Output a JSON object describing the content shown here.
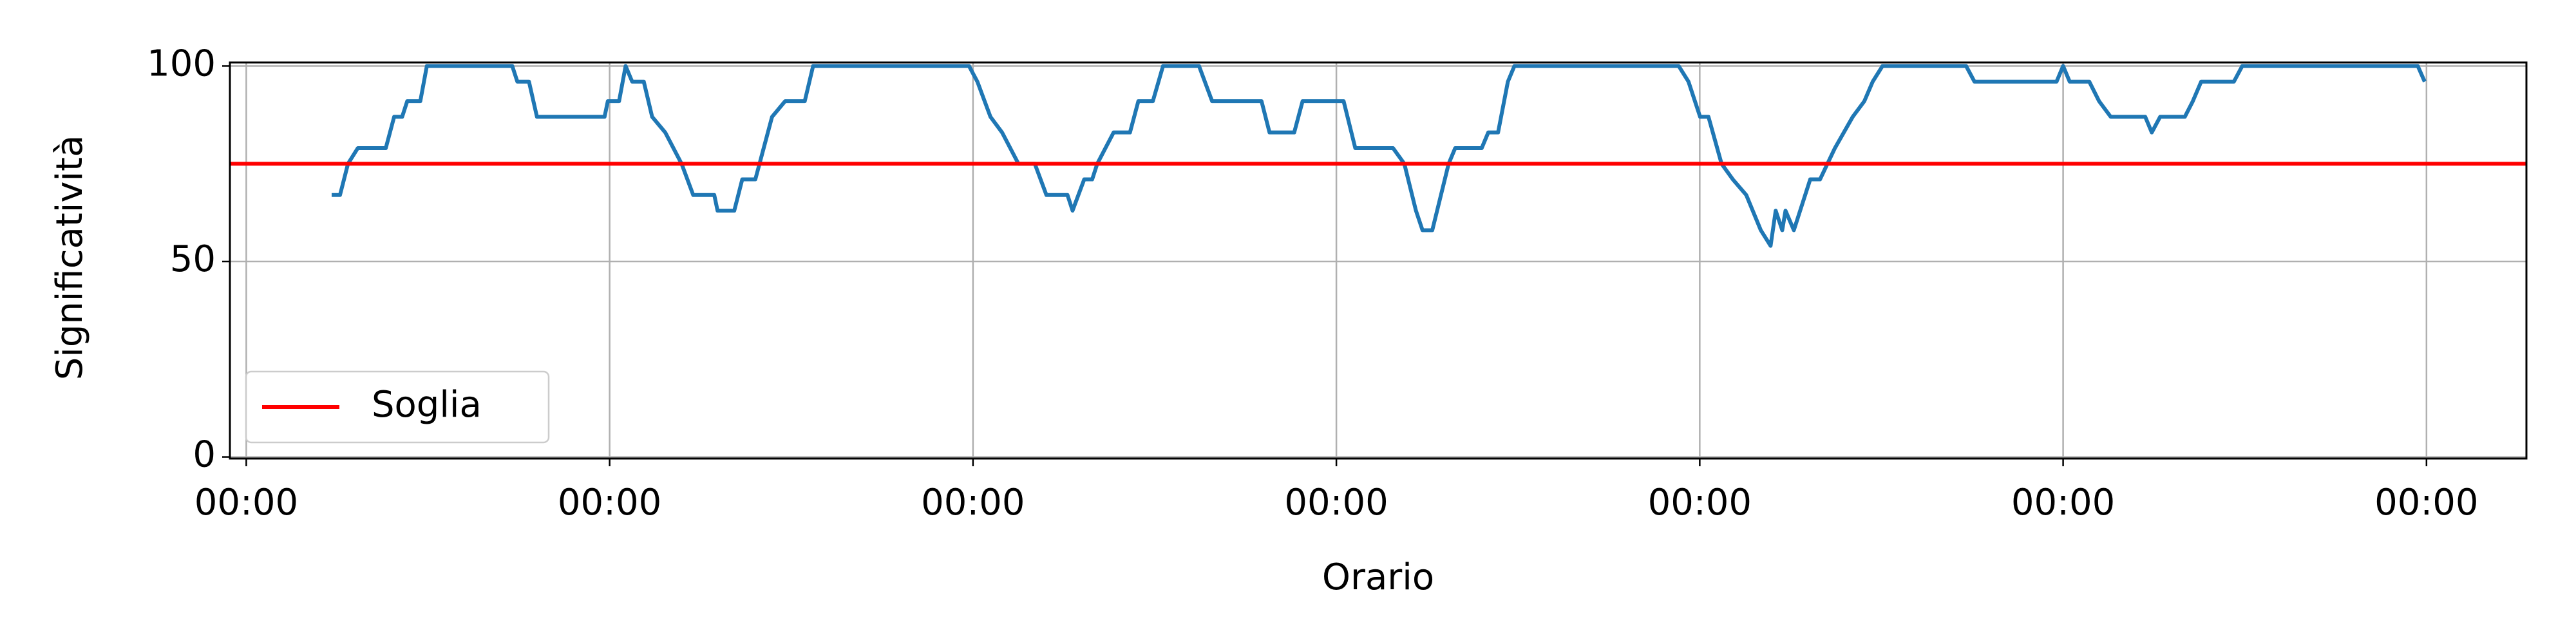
{
  "chart_data": {
    "type": "line",
    "x_label": "Orario",
    "y_label": "Significatività",
    "x": [
      0.235,
      0.258,
      0.28,
      0.307,
      0.384,
      0.407,
      0.429,
      0.443,
      0.479,
      0.497,
      0.732,
      0.746,
      0.778,
      0.8,
      0.986,
      0.995,
      1.026,
      1.044,
      1.062,
      1.094,
      1.117,
      1.153,
      1.198,
      1.23,
      1.288,
      1.297,
      1.343,
      1.365,
      1.401,
      1.424,
      1.447,
      1.483,
      1.537,
      1.56,
      1.989,
      2.012,
      2.048,
      2.08,
      2.125,
      2.17,
      2.202,
      2.26,
      2.274,
      2.306,
      2.328,
      2.342,
      2.387,
      2.432,
      2.455,
      2.495,
      2.523,
      2.622,
      2.658,
      2.794,
      2.816,
      2.884,
      2.907,
      3.02,
      3.052,
      3.156,
      3.187,
      3.219,
      3.237,
      3.264,
      3.309,
      3.327,
      3.4,
      3.418,
      3.445,
      3.472,
      3.49,
      3.942,
      3.969,
      4.001,
      4.024,
      4.06,
      4.091,
      4.128,
      4.168,
      4.195,
      4.209,
      4.227,
      4.236,
      4.259,
      4.304,
      4.331,
      4.372,
      4.421,
      4.453,
      4.476,
      4.503,
      4.733,
      4.756,
      4.982,
      5.0,
      5.018,
      5.072,
      5.099,
      5.131,
      5.226,
      5.244,
      5.267,
      5.335,
      5.357,
      5.38,
      5.47,
      5.493,
      5.976,
      5.995
    ],
    "series": [
      {
        "color": "#1f77b4",
        "values": [
          67,
          67,
          75,
          79,
          79,
          87,
          87,
          91,
          91,
          100,
          100,
          96,
          96,
          87,
          87,
          91,
          91,
          100,
          96,
          96,
          87,
          83,
          75,
          67,
          67,
          63,
          63,
          71,
          71,
          79,
          87,
          91,
          91,
          100,
          100,
          96,
          87,
          83,
          75,
          75,
          67,
          67,
          63,
          71,
          71,
          75,
          83,
          83,
          91,
          91,
          100,
          100,
          91,
          91,
          83,
          83,
          91,
          91,
          79,
          79,
          75,
          63,
          58,
          58,
          75,
          79,
          79,
          83,
          83,
          96,
          100,
          100,
          96,
          87,
          87,
          75,
          71,
          67,
          58,
          54,
          63,
          58,
          63,
          58,
          71,
          71,
          79,
          87,
          91,
          96,
          100,
          100,
          96,
          96,
          100,
          96,
          96,
          91,
          87,
          87,
          83,
          87,
          87,
          91,
          96,
          96,
          100,
          100,
          96
        ]
      }
    ],
    "hlines": [
      {
        "name": "Soglia",
        "value": 75,
        "color": "#ff0000"
      }
    ],
    "legend": "lower left",
    "xlim": [
      -0.045,
      6.275
    ],
    "xticks": [
      {
        "value": 0,
        "label": "00:00"
      },
      {
        "value": 1,
        "label": "00:00"
      },
      {
        "value": 2,
        "label": "00:00"
      },
      {
        "value": 3,
        "label": "00:00"
      },
      {
        "value": 4,
        "label": "00:00"
      },
      {
        "value": 5,
        "label": "00:00"
      },
      {
        "value": 6,
        "label": "00:00"
      }
    ],
    "ylim": [
      -0.4,
      100.9
    ],
    "yticks": [
      0,
      50,
      100
    ],
    "grid": true
  }
}
